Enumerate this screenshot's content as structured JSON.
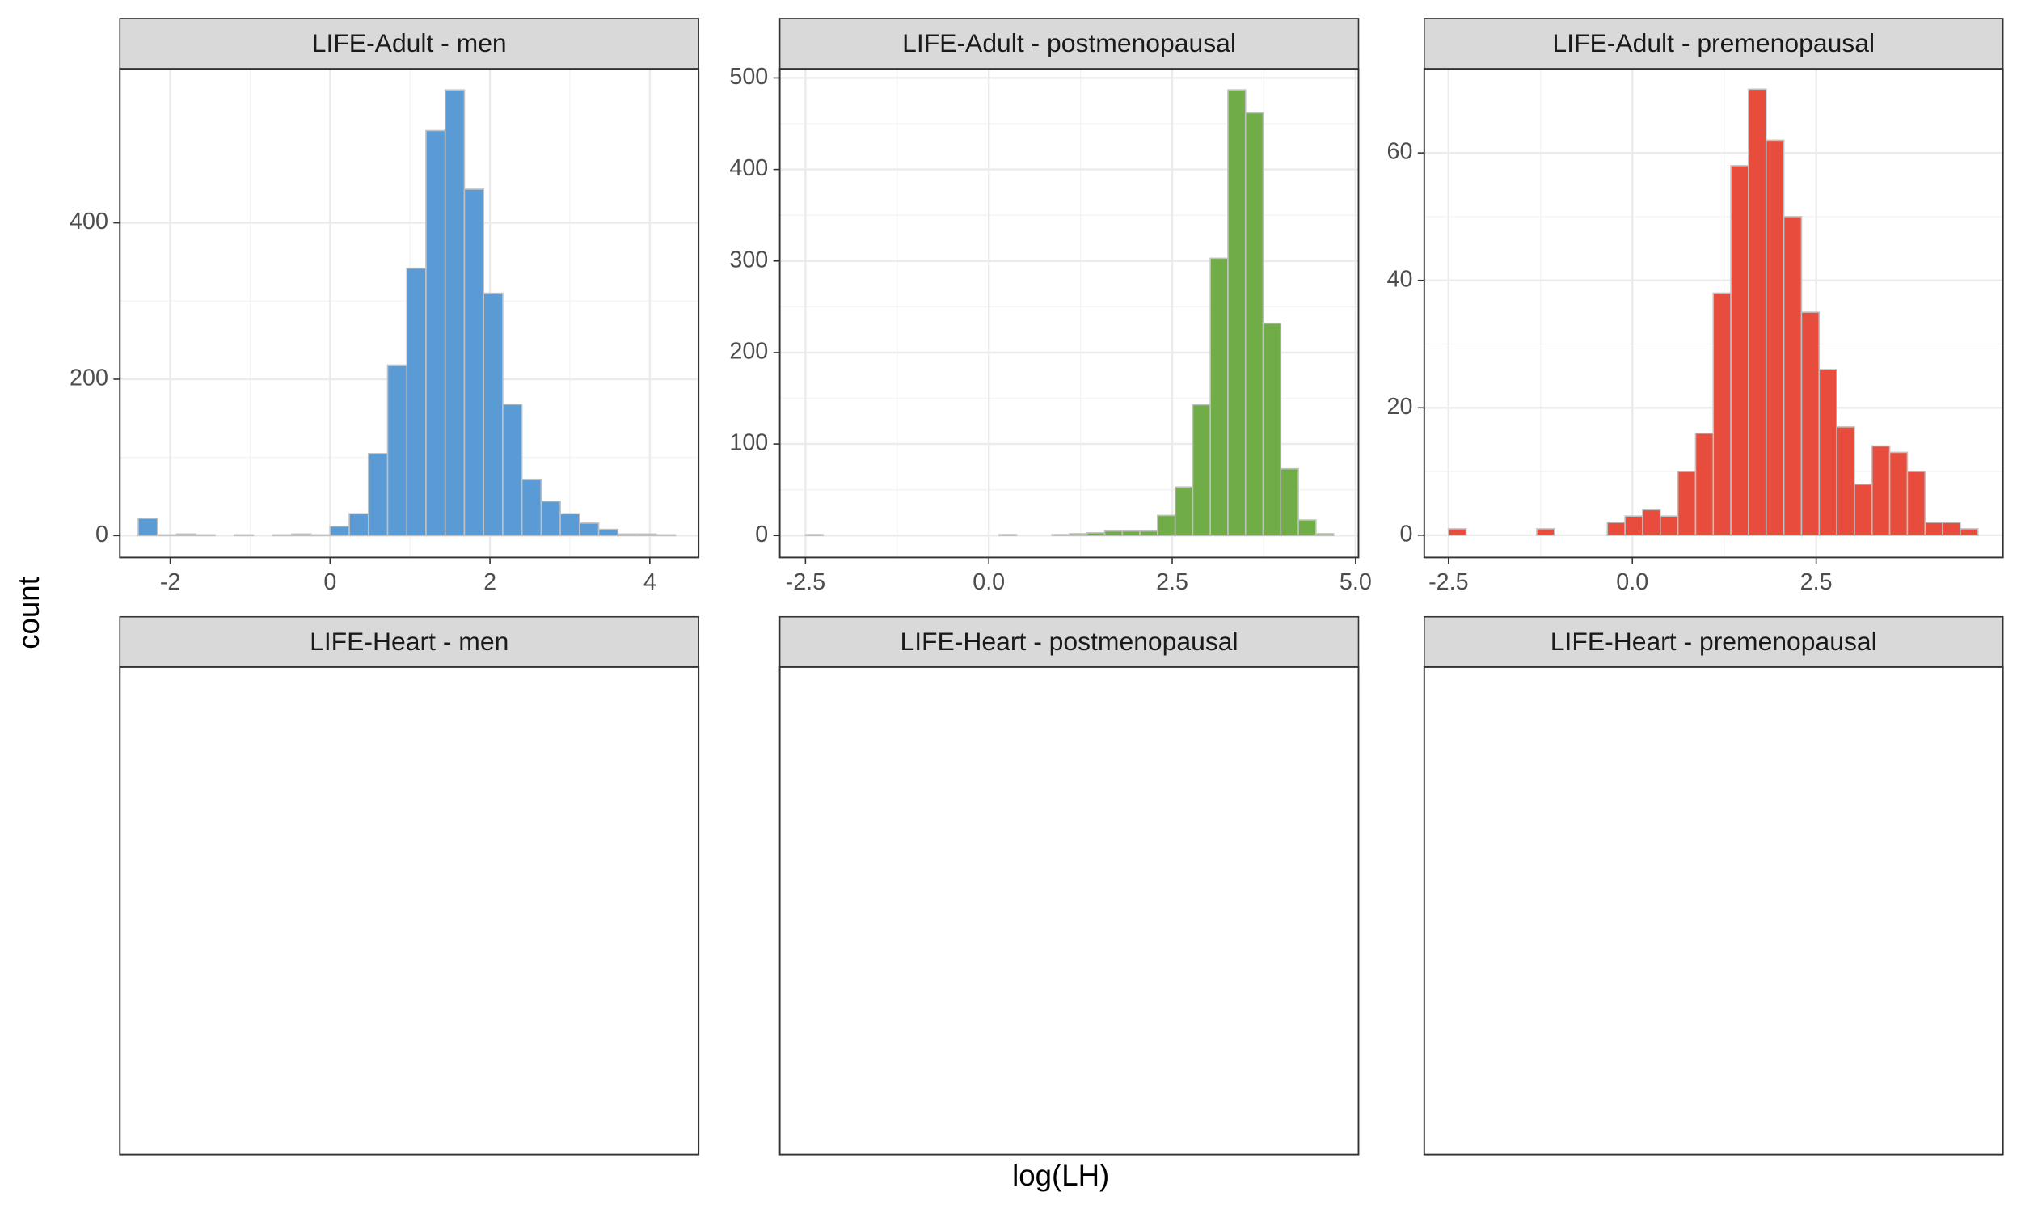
{
  "x_label": "log(LH)",
  "y_label": "count",
  "chart_data": [
    {
      "type": "histogram",
      "title": "LIFE-Adult - men",
      "color": "#5b9bd5",
      "bins": [
        -2.4,
        -2.16,
        -1.92,
        -1.68,
        -1.44,
        -1.2,
        -0.96,
        -0.72,
        -0.48,
        -0.24,
        0,
        0.24,
        0.48,
        0.72,
        0.96,
        1.2,
        1.44,
        1.68,
        1.92,
        2.16,
        2.4,
        2.64,
        2.88,
        3.12,
        3.36,
        3.6,
        3.84,
        4.08,
        4.32
      ],
      "counts": [
        22,
        1,
        2,
        1,
        0,
        1,
        0,
        1,
        2,
        1,
        12,
        28,
        105,
        218,
        342,
        518,
        570,
        443,
        310,
        168,
        72,
        44,
        28,
        16,
        8,
        2,
        2,
        1
      ],
      "xlim": [
        -2.63,
        4.61
      ],
      "ylim": [
        -28,
        597
      ],
      "xticks": [
        -2,
        0,
        2,
        4
      ],
      "yticks": [
        0,
        200,
        400
      ],
      "grid": true
    },
    {
      "type": "histogram",
      "title": "LIFE-Adult - postmenopausal",
      "color": "#70ad47",
      "bins": [
        -2.5,
        -2.26,
        -2.02,
        -1.78,
        -1.54,
        -1.3,
        -1.06,
        -0.82,
        -0.58,
        -0.34,
        -0.1,
        0.14,
        0.38,
        0.62,
        0.86,
        1.1,
        1.34,
        1.58,
        1.82,
        2.06,
        2.3,
        2.54,
        2.78,
        3.02,
        3.26,
        3.5,
        3.74,
        3.98,
        4.22,
        4.46,
        4.7
      ],
      "counts": [
        1,
        0,
        0,
        0,
        0,
        0,
        0,
        0,
        0,
        0,
        0,
        1,
        0,
        0,
        1,
        2,
        3,
        5,
        5,
        5,
        22,
        53,
        143,
        303,
        487,
        462,
        232,
        73,
        17,
        2
      ],
      "xlim": [
        -2.85,
        5.04
      ],
      "ylim": [
        -24,
        510
      ],
      "xticks": [
        -2.5,
        {
          "value": 0,
          "label": "0.0"
        },
        2.5,
        {
          "value": 5,
          "label": "5.0"
        }
      ],
      "yticks": [
        0,
        100,
        200,
        300,
        400,
        500
      ],
      "grid": true
    },
    {
      "type": "histogram",
      "title": "LIFE-Adult - premenopausal",
      "color": "#e84c3d",
      "bins": [
        -2.5,
        -2.26,
        -2.02,
        -1.78,
        -1.54,
        -1.3,
        -1.06,
        -0.82,
        -0.58,
        -0.34,
        -0.1,
        0.14,
        0.38,
        0.62,
        0.86,
        1.1,
        1.34,
        1.58,
        1.82,
        2.06,
        2.3,
        2.54,
        2.78,
        3.02,
        3.26,
        3.5,
        3.74,
        3.98,
        4.22,
        4.46,
        4.7
      ],
      "counts": [
        1,
        0,
        0,
        0,
        0,
        1,
        0,
        0,
        0,
        2,
        3,
        4,
        3,
        10,
        16,
        38,
        58,
        70,
        62,
        50,
        35,
        26,
        17,
        8,
        14,
        13,
        10,
        2,
        2,
        1
      ],
      "xlim": [
        -2.83,
        5.04
      ],
      "ylim": [
        -3.5,
        73.2
      ],
      "xticks": [
        -2.5,
        {
          "value": 0,
          "label": "0.0"
        },
        2.5
      ],
      "yticks": [
        0,
        20,
        40,
        60
      ],
      "grid": true
    },
    {
      "type": "histogram",
      "title": "LIFE-Heart - men"
    },
    {
      "type": "histogram",
      "title": "LIFE-Heart - postmenopausal"
    },
    {
      "type": "histogram",
      "title": "LIFE-Heart - premenopausal"
    }
  ]
}
